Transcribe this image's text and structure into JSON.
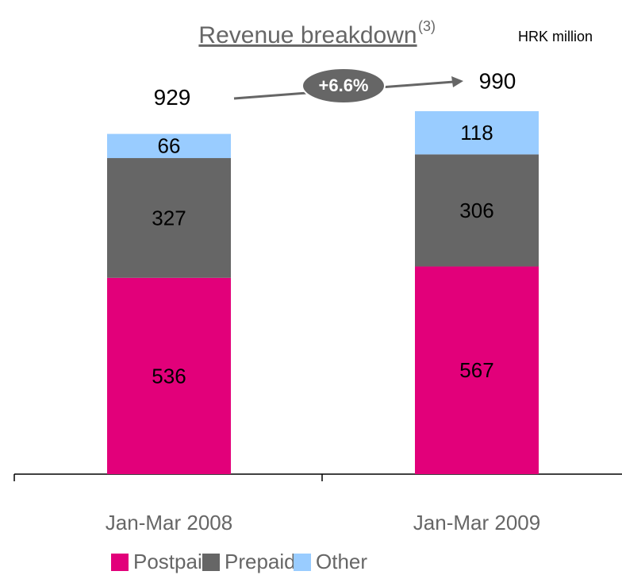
{
  "chart_data": {
    "type": "stacked_bar",
    "title": "Revenue breakdown",
    "title_note": "(3)",
    "unit": "HRK million",
    "categories": [
      "Jan-Mar 2008",
      "Jan-Mar 2009"
    ],
    "series": [
      {
        "name": "Postpaid",
        "color": "#e2007a",
        "values": [
          536,
          567
        ]
      },
      {
        "name": "Prepaid",
        "color": "#666666",
        "values": [
          327,
          306
        ]
      },
      {
        "name": "Other",
        "color": "#99ccff",
        "values": [
          66,
          118
        ]
      }
    ],
    "totals": [
      929,
      990
    ],
    "growth_annotation": "+6.6%"
  }
}
